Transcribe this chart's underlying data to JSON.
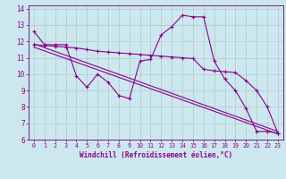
{
  "xlabel": "Windchill (Refroidissement éolien,°C)",
  "background_color": "#cce8ee",
  "line_color": "#8b008b",
  "xlim": [
    -0.5,
    23.5
  ],
  "ylim": [
    6,
    14.2
  ],
  "xticks": [
    0,
    1,
    2,
    3,
    4,
    5,
    6,
    7,
    8,
    9,
    10,
    11,
    12,
    13,
    14,
    15,
    16,
    17,
    18,
    19,
    20,
    21,
    22,
    23
  ],
  "yticks": [
    6,
    7,
    8,
    9,
    10,
    11,
    12,
    13,
    14
  ],
  "series1_x": [
    0,
    1,
    2,
    3,
    4,
    5,
    6,
    7,
    8,
    9,
    10,
    11,
    12,
    13,
    14,
    15,
    16,
    17,
    18,
    19,
    20,
    21,
    22,
    23
  ],
  "series1_y": [
    12.6,
    11.8,
    11.8,
    11.8,
    9.9,
    9.2,
    10.0,
    9.5,
    8.7,
    8.5,
    10.8,
    10.9,
    12.4,
    12.9,
    13.6,
    13.5,
    13.5,
    10.8,
    9.7,
    9.0,
    7.9,
    6.5,
    6.5,
    6.4
  ],
  "series2_x": [
    0,
    1,
    2,
    3,
    4,
    5,
    6,
    7,
    8,
    9,
    10,
    11,
    12,
    13,
    14,
    15,
    16,
    17,
    18,
    19,
    20,
    21,
    22,
    23
  ],
  "series2_y": [
    11.8,
    11.75,
    11.7,
    11.65,
    11.6,
    11.5,
    11.4,
    11.35,
    11.3,
    11.25,
    11.2,
    11.15,
    11.1,
    11.05,
    11.0,
    10.95,
    10.3,
    10.2,
    10.15,
    10.1,
    9.6,
    9.0,
    8.0,
    6.4
  ],
  "series3_x": [
    0,
    23
  ],
  "series3_y": [
    11.85,
    6.5
  ],
  "series4_x": [
    0,
    23
  ],
  "series4_y": [
    11.65,
    6.35
  ],
  "grid_color": "#b0c8cc",
  "marker": "+"
}
